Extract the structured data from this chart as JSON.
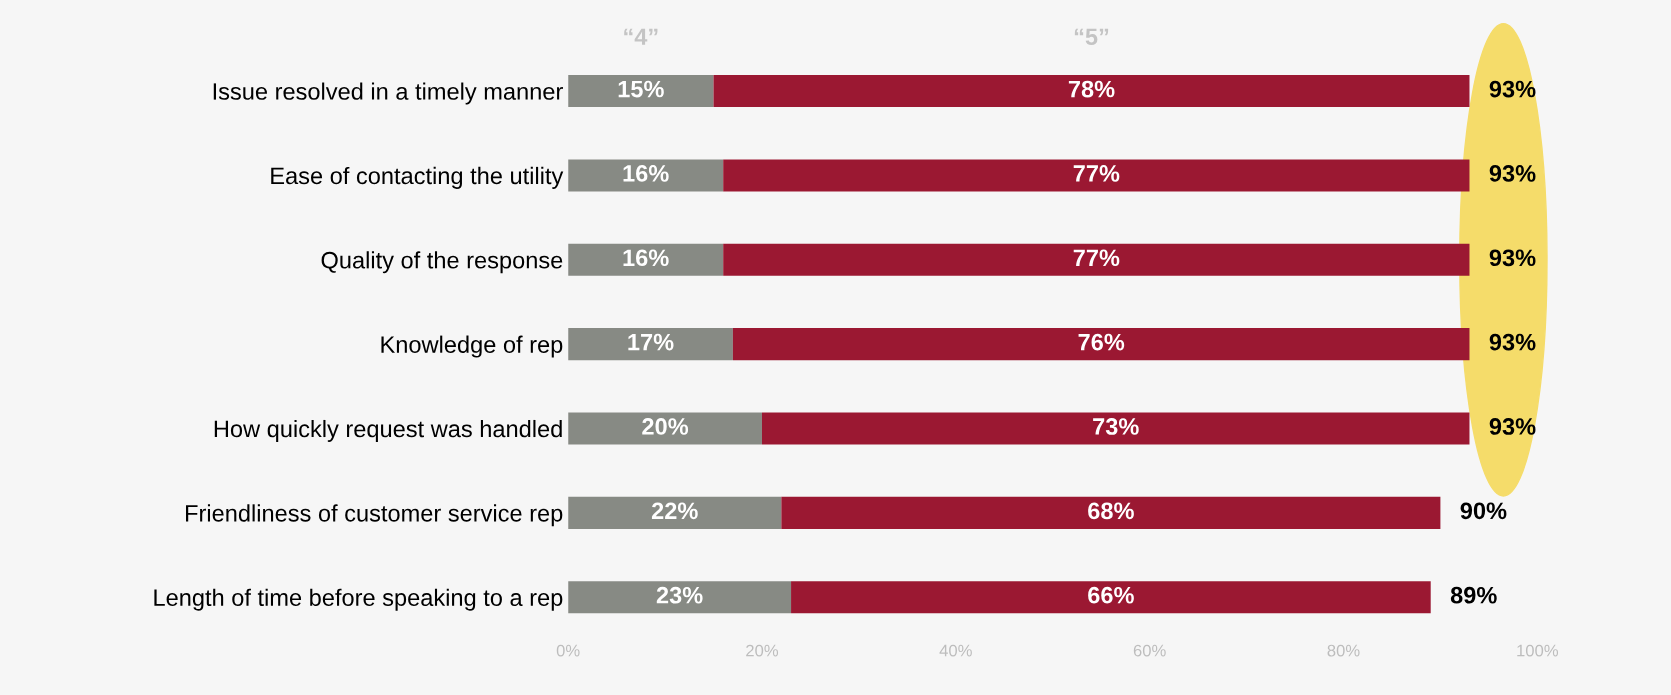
{
  "chart_data": {
    "type": "bar",
    "orientation": "horizontal",
    "stacked": true,
    "legend": false,
    "grid": false,
    "categories": [
      "Issue resolved in a timely manner",
      "Ease of contacting the utility",
      "Quality of the response",
      "Knowledge of rep",
      "How quickly request was handled",
      "Friendliness of customer service rep",
      "Length of time before speaking to a rep"
    ],
    "series": [
      {
        "name": "“4”",
        "color": "#878a84",
        "values": [
          15,
          16,
          16,
          17,
          20,
          22,
          23
        ],
        "value_labels": [
          "15%",
          "16%",
          "16%",
          "17%",
          "20%",
          "22%",
          "23%"
        ]
      },
      {
        "name": "“5”",
        "color": "#9b1832",
        "values": [
          78,
          77,
          77,
          76,
          73,
          68,
          66
        ],
        "value_labels": [
          "78%",
          "77%",
          "77%",
          "76%",
          "73%",
          "68%",
          "66%"
        ]
      }
    ],
    "totals": [
      "93%",
      "93%",
      "93%",
      "93%",
      "93%",
      "90%",
      "89%"
    ],
    "xlim": [
      0,
      100
    ],
    "xticks": [
      {
        "value": 0,
        "label": "0%"
      },
      {
        "value": 20,
        "label": "20%"
      },
      {
        "value": 40,
        "label": "40%"
      },
      {
        "value": 60,
        "label": "60%"
      },
      {
        "value": 80,
        "label": "80%"
      },
      {
        "value": 100,
        "label": "100%"
      }
    ]
  }
}
